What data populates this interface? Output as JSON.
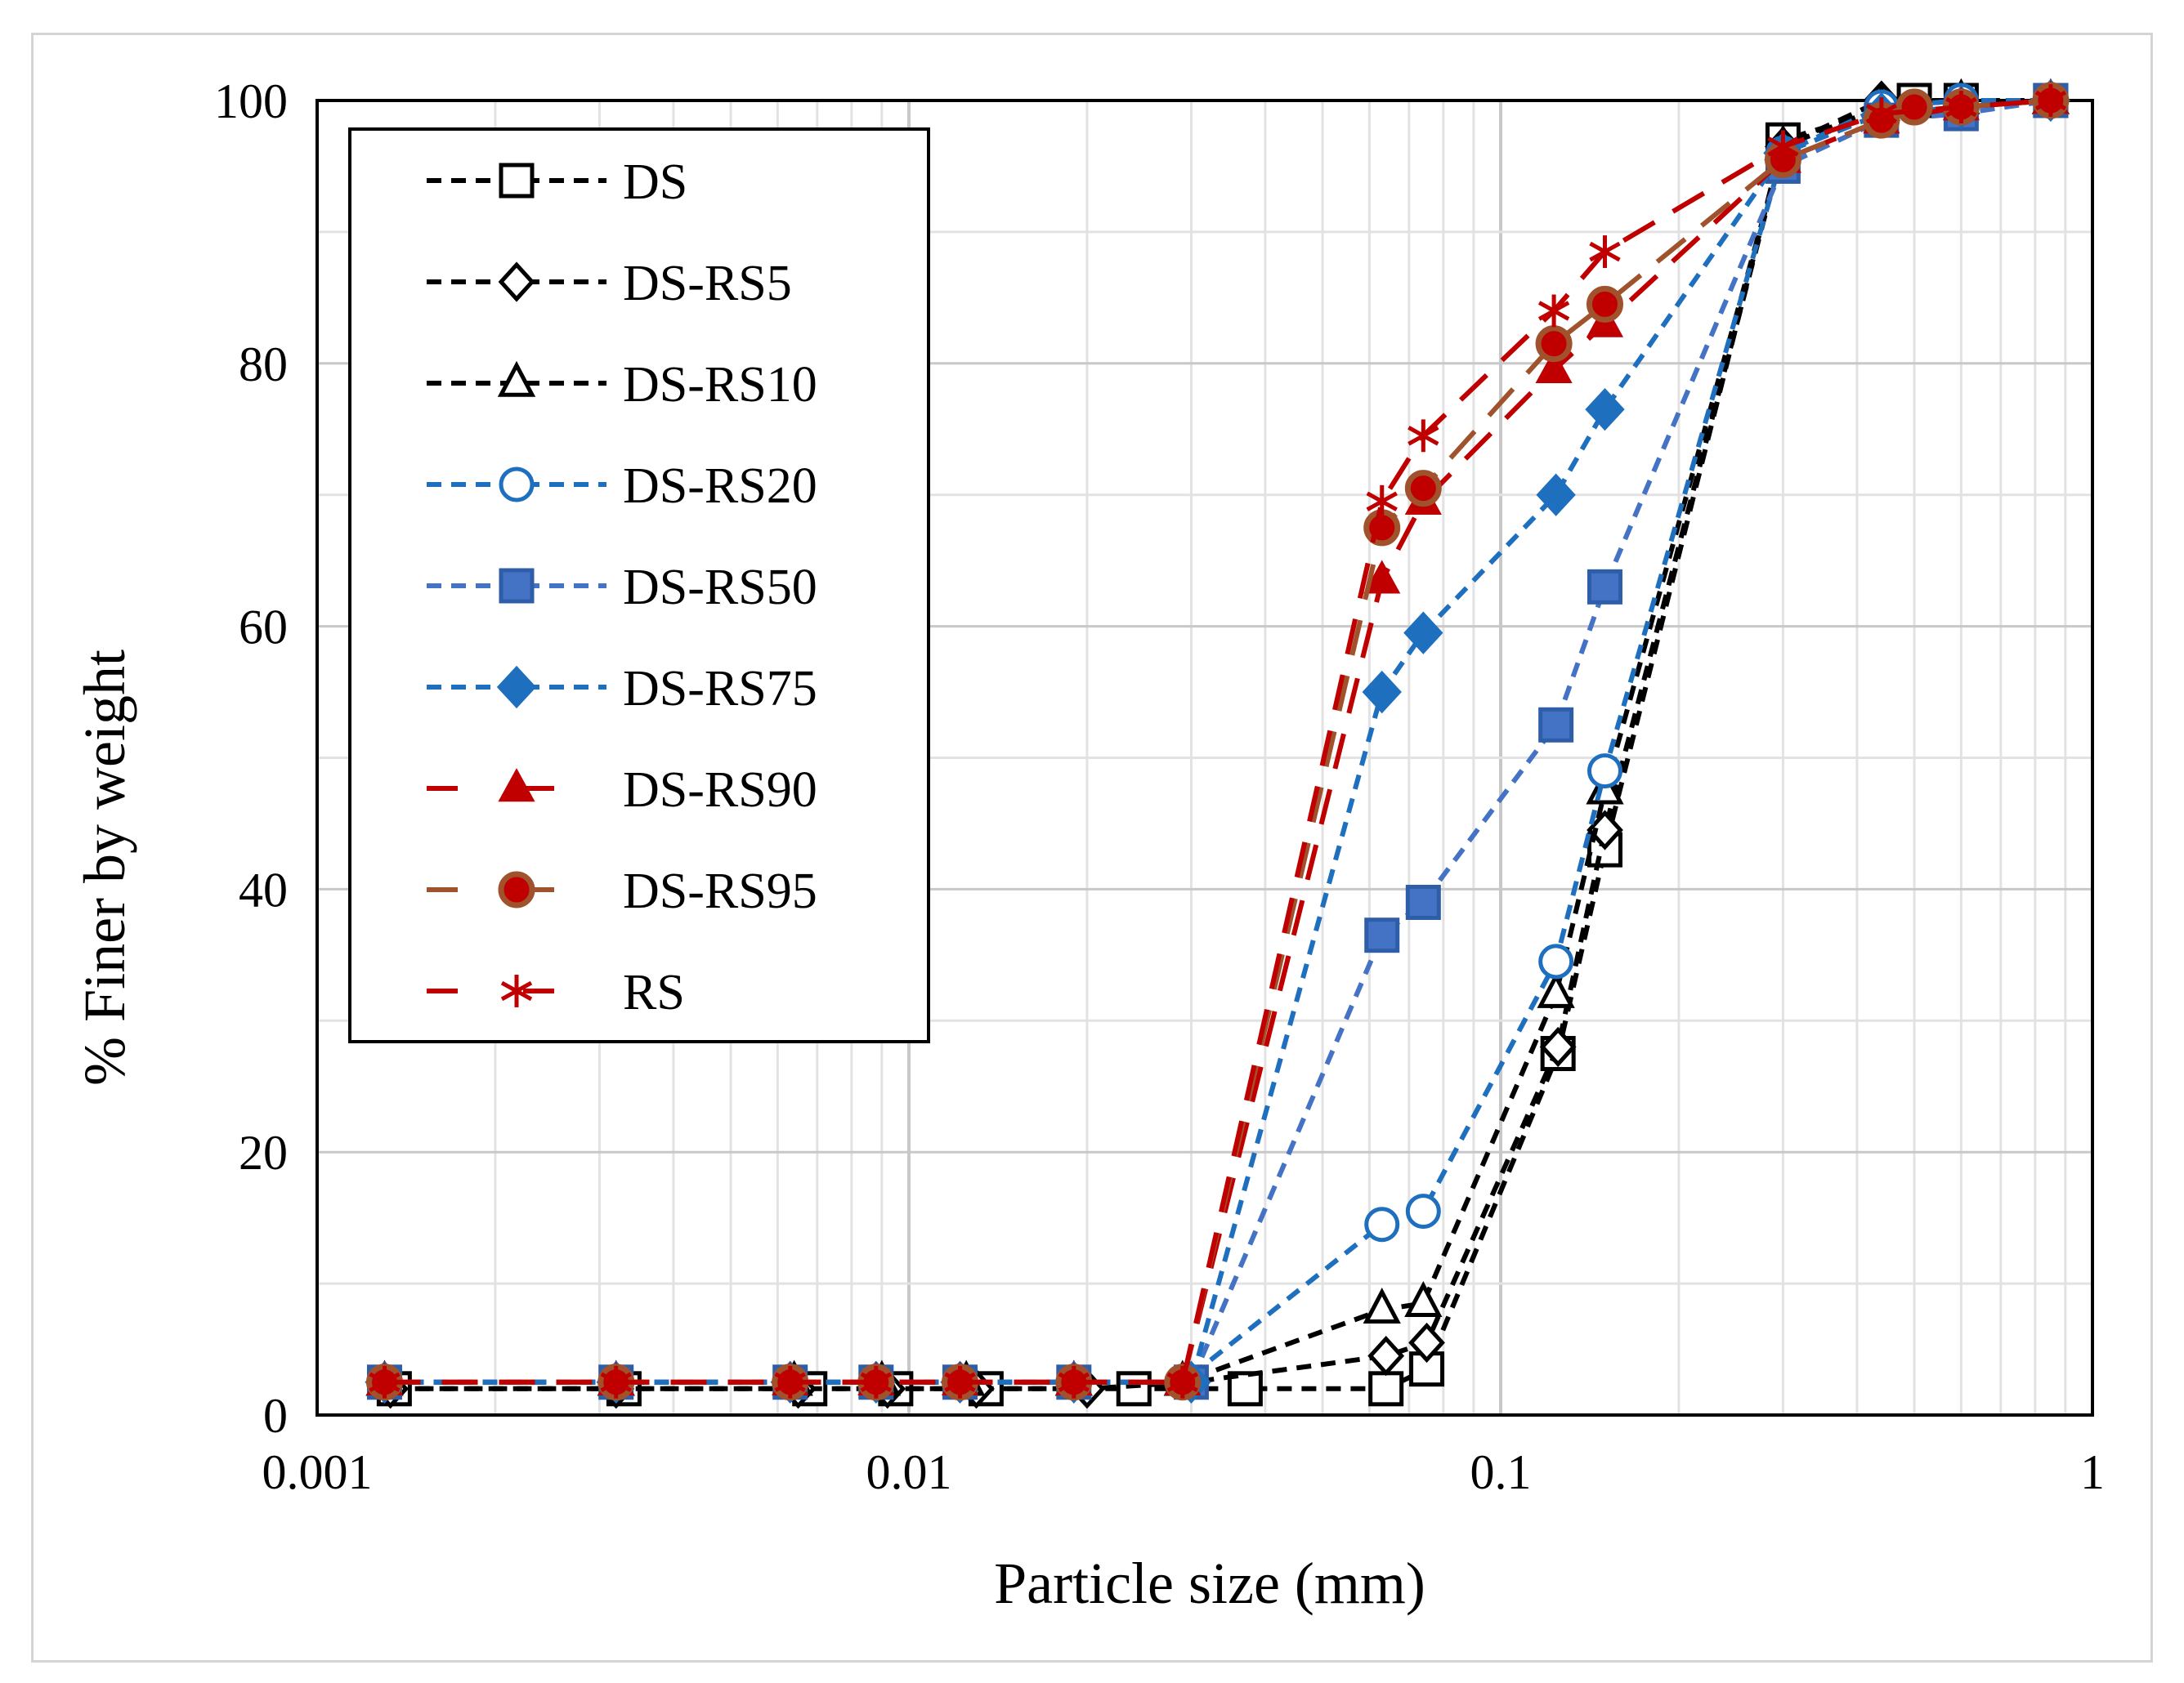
{
  "chart_data": {
    "type": "line",
    "title": "",
    "xlabel": "Particle size (mm)",
    "ylabel": "% Finer by weight",
    "xscale": "log",
    "xlim": [
      0.001,
      1
    ],
    "ylim": [
      0,
      100
    ],
    "x_ticks": [
      {
        "value": 0.001,
        "label": "0.001"
      },
      {
        "value": 0.01,
        "label": "0.01"
      },
      {
        "value": 0.1,
        "label": "0.1"
      },
      {
        "value": 1,
        "label": "1"
      }
    ],
    "y_ticks": [
      {
        "value": 0,
        "label": "0"
      },
      {
        "value": 20,
        "label": "20"
      },
      {
        "value": 40,
        "label": "40"
      },
      {
        "value": 60,
        "label": "60"
      },
      {
        "value": 80,
        "label": "80"
      },
      {
        "value": 100,
        "label": "100"
      }
    ],
    "grid": true,
    "legend_position": "top-left",
    "series": [
      {
        "name": "DS",
        "color": "#000000",
        "marker": "square-open",
        "dash": "short",
        "points": [
          [
            0.00135,
            2
          ],
          [
            0.0033,
            2
          ],
          [
            0.0068,
            2
          ],
          [
            0.0095,
            2
          ],
          [
            0.0135,
            2
          ],
          [
            0.024,
            2
          ],
          [
            0.037,
            2
          ],
          [
            0.064,
            2
          ],
          [
            0.075,
            3.5
          ],
          [
            0.125,
            27.5
          ],
          [
            0.15,
            43
          ],
          [
            0.3,
            97
          ],
          [
            0.5,
            100
          ],
          [
            0.6,
            100
          ],
          [
            0.85,
            100
          ]
        ]
      },
      {
        "name": "DS-RS5",
        "color": "#000000",
        "marker": "diamond-open",
        "dash": "short",
        "points": [
          [
            0.00133,
            2
          ],
          [
            0.0032,
            2
          ],
          [
            0.0065,
            2
          ],
          [
            0.0092,
            2
          ],
          [
            0.013,
            2
          ],
          [
            0.02,
            2
          ],
          [
            0.03,
            2.5
          ],
          [
            0.064,
            4.5
          ],
          [
            0.075,
            5.5
          ],
          [
            0.125,
            28
          ],
          [
            0.15,
            44.5
          ],
          [
            0.3,
            96.5
          ],
          [
            0.44,
            100
          ],
          [
            0.6,
            100
          ],
          [
            0.85,
            100
          ]
        ]
      },
      {
        "name": "DS-RS10",
        "color": "#000000",
        "marker": "triangle-open",
        "dash": "short",
        "points": [
          [
            0.0013,
            2.5
          ],
          [
            0.0032,
            2.5
          ],
          [
            0.0064,
            2.5
          ],
          [
            0.009,
            2.5
          ],
          [
            0.0125,
            2.5
          ],
          [
            0.019,
            2.5
          ],
          [
            0.029,
            2.5
          ],
          [
            0.063,
            8
          ],
          [
            0.074,
            8.5
          ],
          [
            0.124,
            32
          ],
          [
            0.15,
            47.5
          ],
          [
            0.3,
            96.5
          ],
          [
            0.44,
            99.5
          ],
          [
            0.6,
            100
          ],
          [
            0.85,
            100
          ]
        ]
      },
      {
        "name": "DS-RS20",
        "color": "#1f6fbf",
        "marker": "circle-open",
        "dash": "short",
        "points": [
          [
            0.0013,
            2.5
          ],
          [
            0.0032,
            2.5
          ],
          [
            0.0063,
            2.5
          ],
          [
            0.0088,
            2.5
          ],
          [
            0.0122,
            2.5
          ],
          [
            0.019,
            2.5
          ],
          [
            0.029,
            2.5
          ],
          [
            0.063,
            14.5
          ],
          [
            0.074,
            15.5
          ],
          [
            0.124,
            34.5
          ],
          [
            0.15,
            49
          ],
          [
            0.3,
            96
          ],
          [
            0.44,
            99.5
          ],
          [
            0.6,
            100
          ],
          [
            0.85,
            100
          ]
        ]
      },
      {
        "name": "DS-RS50",
        "color": "#4472c4",
        "marker": "square-filled",
        "dash": "short",
        "points": [
          [
            0.0013,
            2.5
          ],
          [
            0.0032,
            2.5
          ],
          [
            0.0063,
            2.5
          ],
          [
            0.0088,
            2.5
          ],
          [
            0.0122,
            2.5
          ],
          [
            0.019,
            2.5
          ],
          [
            0.03,
            2.5
          ],
          [
            0.063,
            36.5
          ],
          [
            0.074,
            39
          ],
          [
            0.124,
            52.5
          ],
          [
            0.15,
            63
          ],
          [
            0.3,
            95
          ],
          [
            0.44,
            98.5
          ],
          [
            0.6,
            99
          ],
          [
            0.85,
            100
          ]
        ]
      },
      {
        "name": "DS-RS75",
        "color": "#1f6fbf",
        "marker": "diamond-filled",
        "dash": "short",
        "points": [
          [
            0.0013,
            2.5
          ],
          [
            0.0032,
            2.5
          ],
          [
            0.0063,
            2.5
          ],
          [
            0.0088,
            2.5
          ],
          [
            0.0122,
            2.5
          ],
          [
            0.019,
            2.5
          ],
          [
            0.03,
            2.5
          ],
          [
            0.063,
            55
          ],
          [
            0.074,
            59.5
          ],
          [
            0.124,
            70
          ],
          [
            0.15,
            76.5
          ],
          [
            0.3,
            96
          ],
          [
            0.44,
            99
          ],
          [
            0.6,
            99.5
          ],
          [
            0.85,
            100
          ]
        ]
      },
      {
        "name": "DS-RS90",
        "color": "#c00000",
        "marker": "triangle-filled",
        "dash": "long",
        "points": [
          [
            0.0013,
            2.5
          ],
          [
            0.0032,
            2.5
          ],
          [
            0.0063,
            2.5
          ],
          [
            0.0088,
            2.5
          ],
          [
            0.0122,
            2.5
          ],
          [
            0.019,
            2.5
          ],
          [
            0.029,
            2.5
          ],
          [
            0.063,
            63.5
          ],
          [
            0.074,
            69.5
          ],
          [
            0.123,
            79.5
          ],
          [
            0.15,
            83
          ],
          [
            0.3,
            95.5
          ],
          [
            0.44,
            98.5
          ],
          [
            0.6,
            99.5
          ],
          [
            0.85,
            100
          ]
        ]
      },
      {
        "name": "DS-RS95",
        "color": "#c00000",
        "edge_color": "#a0522d",
        "marker": "circle-filled",
        "dash": "long",
        "points": [
          [
            0.0013,
            2.5
          ],
          [
            0.0032,
            2.5
          ],
          [
            0.0063,
            2.5
          ],
          [
            0.0088,
            2.5
          ],
          [
            0.0122,
            2.5
          ],
          [
            0.019,
            2.5
          ],
          [
            0.029,
            2.5
          ],
          [
            0.063,
            67.5
          ],
          [
            0.074,
            70.5
          ],
          [
            0.123,
            81.5
          ],
          [
            0.15,
            84.5
          ],
          [
            0.3,
            95.5
          ],
          [
            0.44,
            98.5
          ],
          [
            0.5,
            99.5
          ],
          [
            0.6,
            99.5
          ],
          [
            0.85,
            100
          ]
        ]
      },
      {
        "name": "RS",
        "color": "#c00000",
        "marker": "star",
        "dash": "long",
        "points": [
          [
            0.0013,
            2.5
          ],
          [
            0.0032,
            2.5
          ],
          [
            0.0063,
            2.5
          ],
          [
            0.0088,
            2.5
          ],
          [
            0.0122,
            2.5
          ],
          [
            0.019,
            2.5
          ],
          [
            0.029,
            2.5
          ],
          [
            0.063,
            69.5
          ],
          [
            0.074,
            74.5
          ],
          [
            0.123,
            84
          ],
          [
            0.15,
            88.5
          ],
          [
            0.3,
            96.5
          ],
          [
            0.44,
            99
          ],
          [
            0.6,
            99.5
          ],
          [
            0.85,
            100
          ]
        ]
      }
    ]
  }
}
